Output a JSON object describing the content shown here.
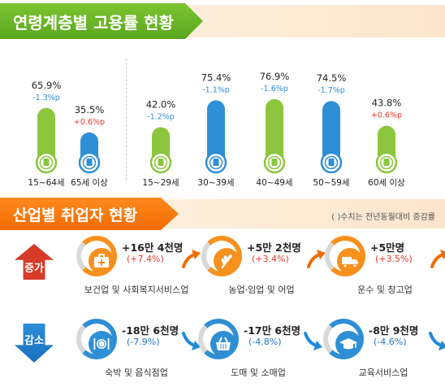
{
  "section1": {
    "title": "연령계층별 고용률 현황"
  },
  "section2": {
    "title": "산업별 취업자 현황",
    "note": "( )수치는 전년동월대비 증감률"
  },
  "chart_data": {
    "type": "bar",
    "title": "연령계층별 고용률 현황",
    "categories": [
      "15~64세",
      "65세 이상",
      "15~29세",
      "30~39세",
      "40~49세",
      "50~59세",
      "60세 이상"
    ],
    "values": [
      65.9,
      35.5,
      42.0,
      75.4,
      76.9,
      74.5,
      43.8
    ],
    "value_labels": [
      "65.9%",
      "35.5%",
      "42.0%",
      "75.4%",
      "76.9%",
      "74.5%",
      "43.8%"
    ],
    "changes": [
      "-1.3%p",
      "+0.6%p",
      "-1.2%p",
      "-1.1%p",
      "-1.6%p",
      "-1.7%p",
      "+0.6%p"
    ],
    "change_direction": [
      "down",
      "up",
      "down",
      "down",
      "down",
      "down",
      "up"
    ],
    "bar_colors": [
      "#8cc63e",
      "#2f8fd6",
      "#8cc63e",
      "#2f8fd6",
      "#8cc63e",
      "#2f8fd6",
      "#8cc63e"
    ],
    "ylim": [
      0,
      100
    ],
    "grid": false
  },
  "industry": {
    "increase_label": "증가",
    "decrease_label": "감소",
    "increase": [
      {
        "amount": "+16만 4천명",
        "rate": "(+7.4%)",
        "label": "보건업 및 사회복지서비스업",
        "icon": "medical-kit-icon"
      },
      {
        "amount": "+5만 2천명",
        "rate": "(+3.4%)",
        "label": "농업·임업 및 어업",
        "icon": "wheat-icon"
      },
      {
        "amount": "+5만명",
        "rate": "(+3.5%)",
        "label": "운수 및 창고업",
        "icon": "truck-icon"
      }
    ],
    "decrease": [
      {
        "amount": "-18만 6천명",
        "rate": "(-7.9%)",
        "label": "숙박 및 음식점업",
        "icon": "dining-icon"
      },
      {
        "amount": "-17만 6천명",
        "rate": "(-4.8%)",
        "label": "도매 및 소매업",
        "icon": "shopping-basket-icon"
      },
      {
        "amount": "-8만 9천명",
        "rate": "(-4.6%)",
        "label": "교육서비스업",
        "icon": "graduation-cap-icon"
      }
    ]
  },
  "colors": {
    "green": "#8cc63e",
    "blue": "#2f8fd6",
    "orange": "#f6911e",
    "red": "#e33b2b"
  }
}
